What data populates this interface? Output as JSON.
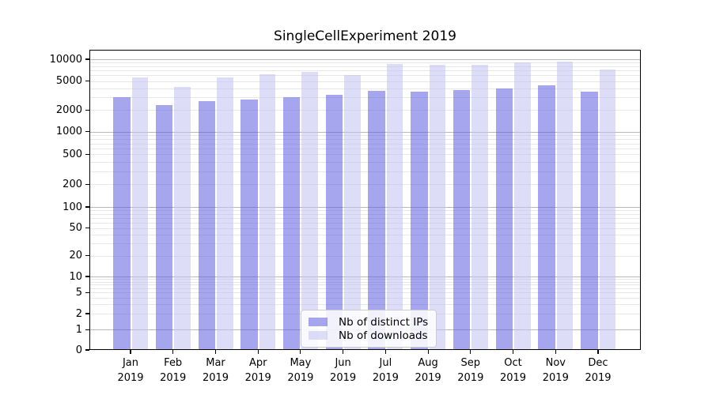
{
  "title": "SingleCellExperiment 2019",
  "chart_data": {
    "type": "bar",
    "title": "SingleCellExperiment 2019",
    "categories": [
      "Jan 2019",
      "Feb 2019",
      "Mar 2019",
      "Apr 2019",
      "May 2019",
      "Jun 2019",
      "Jul 2019",
      "Aug 2019",
      "Sep 2019",
      "Oct 2019",
      "Nov 2019",
      "Dec 2019"
    ],
    "series": [
      {
        "name": "Nb of distinct IPs",
        "color": "rgba(92,92,226,0.55)",
        "values": [
          3000,
          2350,
          2650,
          2800,
          3000,
          3200,
          3700,
          3600,
          3800,
          4000,
          4350,
          3600
        ]
      },
      {
        "name": "Nb of downloads",
        "color": "rgba(193,193,243,0.55)",
        "values": [
          5600,
          4150,
          5600,
          6200,
          6700,
          6100,
          8700,
          8400,
          8450,
          9000,
          9300,
          7200
        ]
      }
    ],
    "yscale": "log (linear segment from 0 to 1)",
    "yticks": [
      0,
      1,
      2,
      5,
      10,
      20,
      50,
      100,
      200,
      500,
      1000,
      2000,
      5000,
      10000
    ],
    "ylim": [
      0,
      13000
    ],
    "xlabel": "",
    "ylabel": "",
    "grid": "horizontal, major and minor lines",
    "legend_position": "lower center",
    "colors": {
      "axis": "#000000",
      "major_grid": "#b9b9b9",
      "minor_grid": "#e7e7e7",
      "background": "#ffffff"
    }
  }
}
